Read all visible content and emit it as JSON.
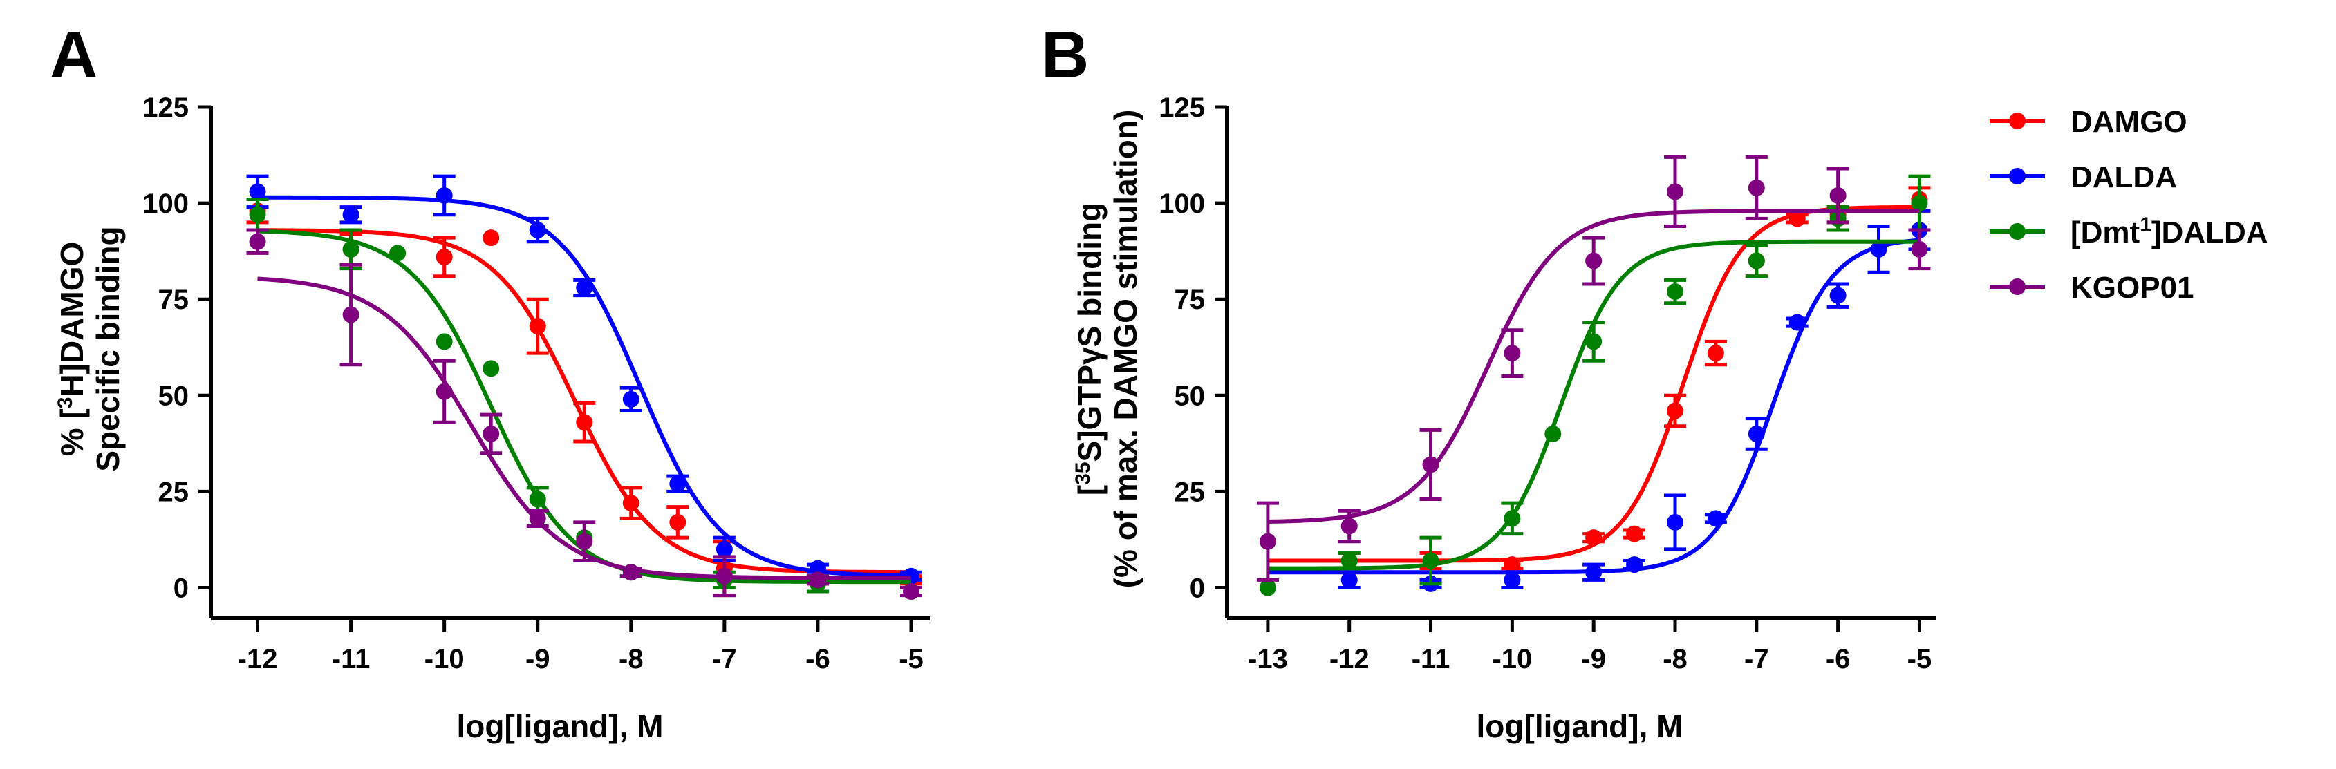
{
  "colors": {
    "DAMGO": "#ff0000",
    "DALDA": "#0000ff",
    "[Dmt1]DALDA": "#008000",
    "KGOP01": "#800080",
    "axis": "#000000"
  },
  "panels": {
    "A": {
      "letter": "A",
      "ylabel_line1": "% [3H]DAMGO",
      "ylabel_line2": "Specific binding",
      "xlabel": "log[ligand], M"
    },
    "B": {
      "letter": "B",
      "ylabel_line1": "[35S]GTPγS binding",
      "ylabel_line2": "(% of max. DAMGO stimulation)",
      "xlabel": "log[ligand], M"
    }
  },
  "legend": {
    "placement": "right of panel B",
    "items": [
      {
        "label": "DAMGO",
        "key": "DAMGO"
      },
      {
        "label": "DALDA",
        "key": "DALDA"
      },
      {
        "label": "[Dmt1]DALDA",
        "key": "[Dmt1]DALDA"
      },
      {
        "label": "KGOP01",
        "key": "KGOP01"
      }
    ]
  },
  "chart_data": [
    {
      "panel": "A",
      "type": "scatter",
      "fit": "sigmoidal dose-response (descending)",
      "xlabel": "log[ligand], M",
      "ylabel": "% [3H]DAMGO Specific binding",
      "xlim": [
        -12.5,
        -4.8
      ],
      "ylim": [
        -8,
        125
      ],
      "xticks": [
        -12,
        -11,
        -10,
        -9,
        -8,
        -7,
        -6,
        -5
      ],
      "yticks": [
        0,
        25,
        50,
        75,
        100,
        125
      ],
      "grid": false,
      "series": [
        {
          "name": "DAMGO",
          "color": "#ff0000",
          "x": [
            -12,
            -11,
            -10,
            -9.5,
            -9,
            -8.5,
            -8,
            -7.5,
            -7,
            -6,
            -5
          ],
          "y": [
            98,
            88,
            86,
            91,
            68,
            43,
            22,
            17,
            5,
            2,
            2
          ],
          "err": [
            3,
            4,
            5,
            0,
            7,
            5,
            4,
            4,
            7,
            1,
            1
          ],
          "fit": {
            "bottom": 4,
            "top": 93,
            "logIC50": -8.6,
            "hill": 1.0
          }
        },
        {
          "name": "DALDA",
          "color": "#0000ff",
          "x": [
            -12,
            -11,
            -10,
            -9,
            -8.5,
            -8,
            -7.5,
            -7,
            -6,
            -5
          ],
          "y": [
            103,
            97,
            102,
            93,
            78,
            49,
            27,
            10,
            5,
            3
          ],
          "err": [
            4,
            2,
            5,
            3,
            2,
            3,
            2,
            3,
            1,
            1
          ],
          "fit": {
            "bottom": 3,
            "top": 101.5,
            "logIC50": -7.9,
            "hill": 1.0
          }
        },
        {
          "name": "[Dmt1]DALDA",
          "color": "#008000",
          "x": [
            -12,
            -11,
            -10.5,
            -10,
            -9.5,
            -9,
            -8.5,
            -8,
            -7,
            -6
          ],
          "y": [
            97,
            88,
            87,
            64,
            57,
            23,
            13,
            4,
            2,
            1
          ],
          "err": [
            4,
            5,
            0,
            0,
            0,
            3,
            0,
            1,
            2,
            2
          ],
          "fit": {
            "bottom": 1.5,
            "top": 93,
            "logIC50": -9.5,
            "hill": 1.0
          }
        },
        {
          "name": "KGOP01",
          "color": "#800080",
          "x": [
            -12,
            -11,
            -10,
            -9.5,
            -9,
            -8.5,
            -8,
            -7,
            -6,
            -5
          ],
          "y": [
            90,
            71,
            51,
            40,
            18,
            12,
            4,
            3,
            2,
            -1
          ],
          "err": [
            3,
            13,
            8,
            5,
            2,
            5,
            1,
            5,
            1,
            1
          ],
          "fit": {
            "bottom": 2.5,
            "top": 81,
            "logIC50": -9.7,
            "hill": 0.9
          }
        }
      ]
    },
    {
      "panel": "B",
      "type": "scatter",
      "fit": "sigmoidal dose-response (ascending)",
      "xlabel": "log[ligand], M",
      "ylabel": "[35S]GTPγS binding (% of max. DAMGO stimulation)",
      "xlim": [
        -13.5,
        -4.8
      ],
      "ylim": [
        -8,
        125
      ],
      "xticks": [
        -13,
        -12,
        -11,
        -10,
        -9,
        -8,
        -7,
        -6,
        -5
      ],
      "yticks": [
        0,
        25,
        50,
        75,
        100,
        125
      ],
      "grid": false,
      "series": [
        {
          "name": "DAMGO",
          "color": "#ff0000",
          "x": [
            -12,
            -11,
            -10,
            -9,
            -8.5,
            -8,
            -7.5,
            -7,
            -6.5,
            -6,
            -5
          ],
          "y": [
            7,
            7,
            6,
            13,
            14,
            46,
            61,
            85,
            96,
            97,
            101
          ],
          "err": [
            2,
            2,
            1,
            1,
            1,
            4,
            3,
            4,
            1,
            2,
            3
          ],
          "fit": {
            "bottom": 7,
            "top": 99,
            "logEC50": -7.9,
            "hill": 1.2
          }
        },
        {
          "name": "DALDA",
          "color": "#0000ff",
          "x": [
            -12,
            -11,
            -10,
            -9,
            -8.5,
            -8,
            -7.5,
            -7,
            -6.5,
            -6,
            -5.5,
            -5
          ],
          "y": [
            2,
            1,
            2,
            4,
            6,
            17,
            18,
            40,
            69,
            76,
            88,
            93
          ],
          "err": [
            2,
            1,
            2,
            2,
            1,
            7,
            1,
            4,
            1,
            3,
            6,
            5
          ],
          "fit": {
            "bottom": 4,
            "top": 91,
            "logEC50": -6.8,
            "hill": 1.2
          }
        },
        {
          "name": "[Dmt1]DALDA",
          "color": "#008000",
          "x": [
            -13,
            -12,
            -11,
            -10,
            -9.5,
            -9,
            -8,
            -7,
            -6,
            -5
          ],
          "y": [
            0,
            7,
            7,
            18,
            40,
            64,
            77,
            85,
            96,
            100
          ],
          "err": [
            0,
            2,
            6,
            4,
            0,
            5,
            3,
            4,
            3,
            7
          ],
          "fit": {
            "bottom": 5,
            "top": 90,
            "logEC50": -9.4,
            "hill": 1.2
          }
        },
        {
          "name": "KGOP01",
          "color": "#800080",
          "x": [
            -13,
            -12,
            -11,
            -10,
            -9,
            -8,
            -7,
            -6,
            -5
          ],
          "y": [
            12,
            16,
            32,
            61,
            85,
            103,
            104,
            102,
            88
          ],
          "err": [
            10,
            4,
            9,
            6,
            6,
            9,
            8,
            7,
            5
          ],
          "fit": {
            "bottom": 17,
            "top": 98,
            "logEC50": -10.3,
            "hill": 1.0
          }
        }
      ]
    }
  ]
}
